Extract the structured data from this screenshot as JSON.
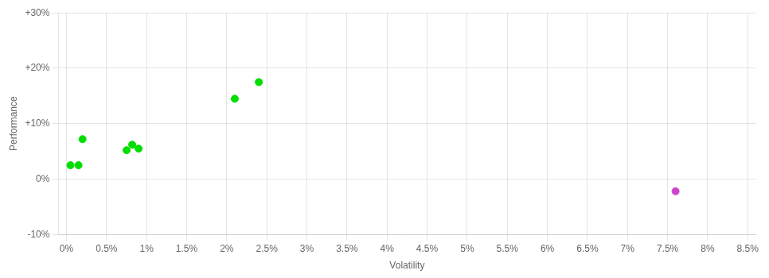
{
  "chart_data": {
    "type": "scatter",
    "xlabel": "Volatility",
    "ylabel": "Performance",
    "xlim": [
      -0.001,
      0.086
    ],
    "ylim": [
      -0.1,
      0.3
    ],
    "xticks": [
      {
        "value": 0.0,
        "label": "0%"
      },
      {
        "value": 0.005,
        "label": "0.5%"
      },
      {
        "value": 0.01,
        "label": "1%"
      },
      {
        "value": 0.015,
        "label": "1.5%"
      },
      {
        "value": 0.02,
        "label": "2%"
      },
      {
        "value": 0.025,
        "label": "2.5%"
      },
      {
        "value": 0.03,
        "label": "3%"
      },
      {
        "value": 0.035,
        "label": "3.5%"
      },
      {
        "value": 0.04,
        "label": "4%"
      },
      {
        "value": 0.045,
        "label": "4.5%"
      },
      {
        "value": 0.05,
        "label": "5%"
      },
      {
        "value": 0.055,
        "label": "5.5%"
      },
      {
        "value": 0.06,
        "label": "6%"
      },
      {
        "value": 0.065,
        "label": "6.5%"
      },
      {
        "value": 0.07,
        "label": "7%"
      },
      {
        "value": 0.075,
        "label": "7.5%"
      },
      {
        "value": 0.08,
        "label": "8%"
      },
      {
        "value": 0.085,
        "label": "8.5%"
      }
    ],
    "yticks": [
      {
        "value": -0.1,
        "label": "-10%"
      },
      {
        "value": 0.0,
        "label": "0%"
      },
      {
        "value": 0.1,
        "label": "+10%"
      },
      {
        "value": 0.2,
        "label": "+20%"
      },
      {
        "value": 0.3,
        "label": "+30%"
      }
    ],
    "grid": true,
    "series": [
      {
        "color": "#00dd00",
        "x": [
          0.0005,
          0.0015,
          0.002,
          0.0075,
          0.0082,
          0.009,
          0.021,
          0.024
        ],
        "values": [
          0.025,
          0.025,
          0.072,
          0.052,
          0.062,
          0.055,
          0.145,
          0.175
        ]
      },
      {
        "color": "#cc44cc",
        "x": [
          0.076
        ],
        "values": [
          -0.022
        ]
      }
    ]
  }
}
